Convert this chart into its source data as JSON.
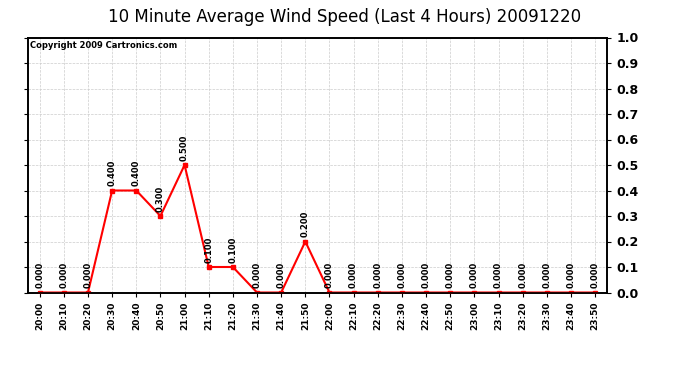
{
  "title": "10 Minute Average Wind Speed (Last 4 Hours) 20091220",
  "copyright_text": "Copyright 2009 Cartronics.com",
  "x_labels": [
    "20:00",
    "20:10",
    "20:20",
    "20:30",
    "20:40",
    "20:50",
    "21:00",
    "21:10",
    "21:20",
    "21:30",
    "21:40",
    "21:50",
    "22:00",
    "22:10",
    "22:20",
    "22:30",
    "22:40",
    "22:50",
    "23:00",
    "23:10",
    "23:20",
    "23:30",
    "23:40",
    "23:50"
  ],
  "y_values": [
    0.0,
    0.0,
    0.0,
    0.4,
    0.4,
    0.3,
    0.5,
    0.1,
    0.1,
    0.0,
    0.0,
    0.2,
    0.0,
    0.0,
    0.0,
    0.0,
    0.0,
    0.0,
    0.0,
    0.0,
    0.0,
    0.0,
    0.0,
    0.0
  ],
  "line_color": "#ff0000",
  "marker_color": "#ff0000",
  "background_color": "#ffffff",
  "grid_color": "#cccccc",
  "ylim": [
    0.0,
    1.0
  ],
  "yticks": [
    0.0,
    0.1,
    0.2,
    0.3,
    0.4,
    0.5,
    0.6,
    0.7,
    0.8,
    0.9,
    1.0
  ],
  "title_fontsize": 12,
  "label_fontsize": 6.5,
  "annotation_fontsize": 6,
  "right_ytick_fontsize": 9
}
